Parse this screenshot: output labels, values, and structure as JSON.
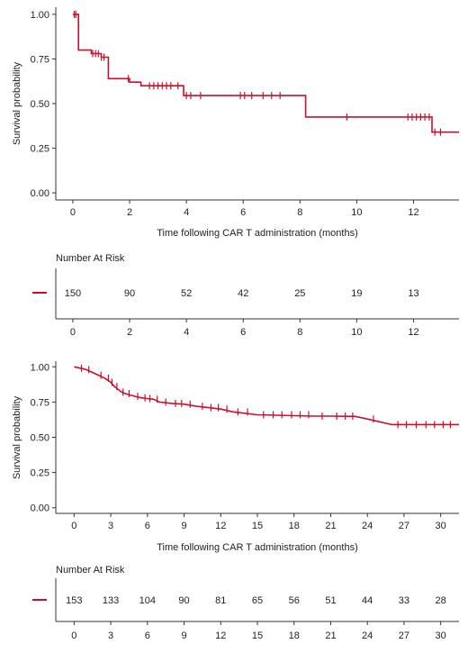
{
  "chart_data": [
    {
      "type": "line",
      "title": "",
      "xlabel": "Time following CAR T administration (months)",
      "ylabel": "Survival probability",
      "xlim": [
        -0.6,
        13.6
      ],
      "ylim": [
        -0.04,
        1.04
      ],
      "xticks": [
        0,
        2,
        4,
        6,
        8,
        10,
        12
      ],
      "xtick_labels": [
        "0",
        "2",
        "4",
        "6",
        "8",
        "10",
        "12"
      ],
      "yticks": [
        0,
        0.25,
        0.5,
        0.75,
        1.0
      ],
      "ytick_labels": [
        "0.00",
        "0.25",
        "0.50",
        "0.75",
        "1.00"
      ],
      "grid": false,
      "color": "#c8102e",
      "series": [
        {
          "step_x": [
            0,
            0.2,
            0.2,
            0.65,
            0.65,
            1.0,
            1.0,
            1.25,
            1.25,
            2.0,
            2.0,
            2.4,
            2.4,
            3.9,
            3.9,
            8.2,
            8.2,
            12.65,
            12.65,
            13.6
          ],
          "step_y": [
            1.0,
            1.0,
            0.8,
            0.8,
            0.78,
            0.78,
            0.76,
            0.76,
            0.64,
            0.64,
            0.62,
            0.62,
            0.6,
            0.6,
            0.545,
            0.545,
            0.425,
            0.425,
            0.34,
            0.34
          ],
          "censor_x": [
            0.05,
            0.1,
            0.7,
            0.8,
            0.9,
            1.0,
            1.1,
            1.95,
            2.7,
            2.85,
            3.0,
            3.15,
            3.3,
            3.45,
            3.7,
            4.0,
            4.15,
            4.5,
            5.9,
            6.05,
            6.3,
            6.7,
            7.0,
            7.3,
            9.65,
            11.8,
            11.95,
            12.1,
            12.25,
            12.4,
            12.55,
            12.75,
            12.95
          ]
        }
      ],
      "risk_table": {
        "title": "Number At Risk",
        "times": [
          0,
          2,
          4,
          6,
          8,
          10,
          12
        ],
        "numbers": [
          "150",
          "90",
          "52",
          "42",
          "25",
          "19",
          "13"
        ],
        "xtick_labels": [
          "0",
          "2",
          "4",
          "6",
          "8",
          "10",
          "12"
        ]
      }
    },
    {
      "type": "line",
      "title": "",
      "xlabel": "Time following CAR T administration (months)",
      "ylabel": "Survival probability",
      "xlim": [
        -1.5,
        31.5
      ],
      "ylim": [
        -0.04,
        1.04
      ],
      "xticks": [
        0,
        3,
        6,
        9,
        12,
        15,
        18,
        21,
        24,
        27,
        30
      ],
      "xtick_labels": [
        "0",
        "3",
        "6",
        "9",
        "12",
        "15",
        "18",
        "21",
        "24",
        "27",
        "30"
      ],
      "yticks": [
        0,
        0.25,
        0.5,
        0.75,
        1.0
      ],
      "ytick_labels": [
        "0.00",
        "0.25",
        "0.50",
        "0.75",
        "1.00"
      ],
      "grid": false,
      "color": "#c8102e",
      "series": [
        {
          "step_x": [
            0,
            0.5,
            1.0,
            1.5,
            2.0,
            2.5,
            3.0,
            3.3,
            3.6,
            3.9,
            4.2,
            4.6,
            5.0,
            5.5,
            6.0,
            6.5,
            7.0,
            8.0,
            9.0,
            10.0,
            11.0,
            12.0,
            13.0,
            15.0,
            19.5,
            21.0,
            23.0,
            24.0,
            25.0,
            25.5,
            26.0,
            31.5
          ],
          "step_y": [
            1.0,
            0.99,
            0.98,
            0.96,
            0.94,
            0.92,
            0.89,
            0.86,
            0.84,
            0.82,
            0.81,
            0.8,
            0.79,
            0.78,
            0.775,
            0.77,
            0.75,
            0.74,
            0.735,
            0.72,
            0.71,
            0.7,
            0.68,
            0.66,
            0.65,
            0.65,
            0.648,
            0.63,
            0.61,
            0.6,
            0.59,
            0.59
          ],
          "censor_x": [
            0.6,
            1.2,
            2.2,
            2.8,
            3.1,
            3.5,
            4.0,
            4.5,
            5.2,
            5.8,
            6.2,
            6.8,
            7.5,
            8.3,
            8.8,
            9.5,
            10.5,
            11.2,
            11.8,
            12.5,
            13.4,
            14.2,
            15.5,
            16.3,
            17.0,
            17.8,
            18.5,
            19.2,
            20.3,
            21.5,
            22.2,
            22.8,
            24.5,
            26.5,
            27.2,
            28.0,
            28.8,
            29.5,
            30.2,
            30.8
          ]
        }
      ],
      "risk_table": {
        "title": "Number At Risk",
        "times": [
          0,
          3,
          6,
          9,
          12,
          15,
          18,
          21,
          24,
          27,
          30
        ],
        "numbers": [
          "153",
          "133",
          "104",
          "90",
          "81",
          "65",
          "56",
          "51",
          "44",
          "33",
          "28"
        ],
        "xtick_labels": [
          "0",
          "3",
          "6",
          "9",
          "12",
          "15",
          "18",
          "21",
          "24",
          "27",
          "30"
        ]
      }
    }
  ]
}
